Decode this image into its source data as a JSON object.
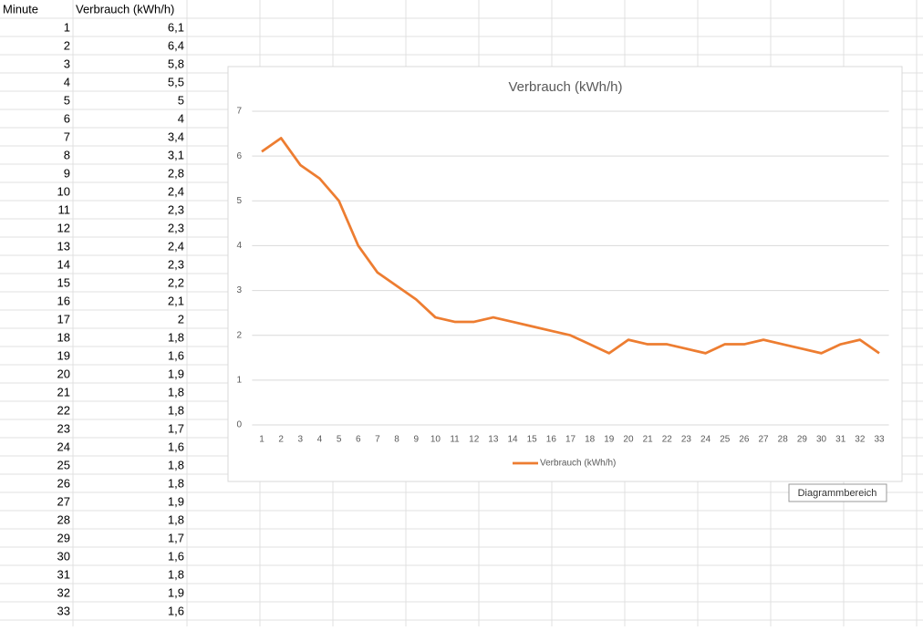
{
  "table": {
    "header": [
      "Minute",
      "Verbrauch (kWh/h)"
    ],
    "rows": [
      [
        "1",
        "6,1"
      ],
      [
        "2",
        "6,4"
      ],
      [
        "3",
        "5,8"
      ],
      [
        "4",
        "5,5"
      ],
      [
        "5",
        "5"
      ],
      [
        "6",
        "4"
      ],
      [
        "7",
        "3,4"
      ],
      [
        "8",
        "3,1"
      ],
      [
        "9",
        "2,8"
      ],
      [
        "10",
        "2,4"
      ],
      [
        "11",
        "2,3"
      ],
      [
        "12",
        "2,3"
      ],
      [
        "13",
        "2,4"
      ],
      [
        "14",
        "2,3"
      ],
      [
        "15",
        "2,2"
      ],
      [
        "16",
        "2,1"
      ],
      [
        "17",
        "2"
      ],
      [
        "18",
        "1,8"
      ],
      [
        "19",
        "1,6"
      ],
      [
        "20",
        "1,9"
      ],
      [
        "21",
        "1,8"
      ],
      [
        "22",
        "1,8"
      ],
      [
        "23",
        "1,7"
      ],
      [
        "24",
        "1,6"
      ],
      [
        "25",
        "1,8"
      ],
      [
        "26",
        "1,8"
      ],
      [
        "27",
        "1,9"
      ],
      [
        "28",
        "1,8"
      ],
      [
        "29",
        "1,7"
      ],
      [
        "30",
        "1,6"
      ],
      [
        "31",
        "1,8"
      ],
      [
        "32",
        "1,9"
      ],
      [
        "33",
        "1,6"
      ]
    ]
  },
  "chart_data": {
    "type": "line",
    "title": "Verbrauch (kWh/h)",
    "categories": [
      "1",
      "2",
      "3",
      "4",
      "5",
      "6",
      "7",
      "8",
      "9",
      "10",
      "11",
      "12",
      "13",
      "14",
      "15",
      "16",
      "17",
      "18",
      "19",
      "20",
      "21",
      "22",
      "23",
      "24",
      "25",
      "26",
      "27",
      "28",
      "29",
      "30",
      "31",
      "32",
      "33"
    ],
    "series": [
      {
        "name": "Verbrauch (kWh/h)",
        "color": "#ed7d31",
        "values": [
          6.1,
          6.4,
          5.8,
          5.5,
          5,
          4,
          3.4,
          3.1,
          2.8,
          2.4,
          2.3,
          2.3,
          2.4,
          2.3,
          2.2,
          2.1,
          2,
          1.8,
          1.6,
          1.9,
          1.8,
          1.8,
          1.7,
          1.6,
          1.8,
          1.8,
          1.9,
          1.8,
          1.7,
          1.6,
          1.8,
          1.9,
          1.6
        ]
      }
    ],
    "ylim": [
      0,
      7
    ],
    "yticks": [
      0,
      1,
      2,
      3,
      4,
      5,
      6,
      7
    ],
    "grid": true,
    "legend": "bottom"
  },
  "tooltip": "Diagrammbereich"
}
